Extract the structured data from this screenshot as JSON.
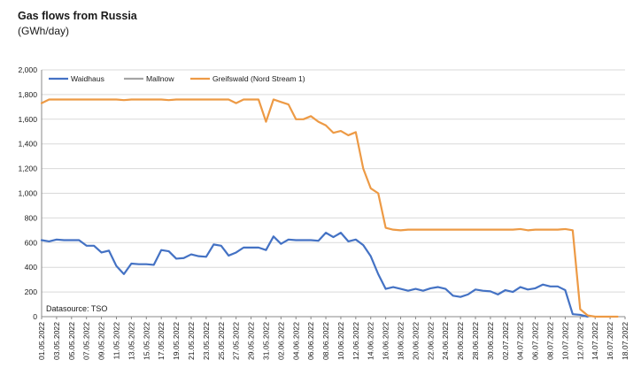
{
  "header": {
    "title": "Gas flows from Russia",
    "subtitle": "(GWh/day)"
  },
  "colors": {
    "waidhaus": "#4472c4",
    "mallnow": "#a5a5a5",
    "greifswald": "#ed9a45",
    "grid": "#d9d9d9",
    "axis": "#888888"
  },
  "chart_data": {
    "type": "line",
    "title": "Gas flows from Russia",
    "ylabel": "(GWh/day)",
    "ylim": [
      0,
      2000
    ],
    "yticks": [
      "0",
      "200",
      "400",
      "600",
      "800",
      "1,000",
      "1,200",
      "1,400",
      "1,600",
      "1,800",
      "2,000"
    ],
    "grid": "horizontal",
    "legend": "top-left",
    "annotation": "Datasource: TSO",
    "x_start": "01.05.2022",
    "x_end": "18.07.2022",
    "x_tick_labels": [
      "01.05.2022",
      "03.05.2022",
      "05.05.2022",
      "07.05.2022",
      "09.05.2022",
      "11.05.2022",
      "13.05.2022",
      "15.05.2022",
      "17.05.2022",
      "19.05.2022",
      "21.05.2022",
      "23.05.2022",
      "25.05.2022",
      "27.05.2022",
      "29.05.2022",
      "31.05.2022",
      "02.06.2022",
      "04.06.2022",
      "06.06.2022",
      "08.06.2022",
      "10.06.2022",
      "12.06.2022",
      "14.06.2022",
      "16.06.2022",
      "18.06.2022",
      "20.06.2022",
      "22.06.2022",
      "24.06.2022",
      "26.06.2022",
      "28.06.2022",
      "30.06.2022",
      "02.07.2022",
      "04.07.2022",
      "06.07.2022",
      "08.07.2022",
      "10.07.2022",
      "12.07.2022",
      "14.07.2022",
      "16.07.2022",
      "18.07.2022"
    ],
    "series": [
      {
        "name": "Waidhaus",
        "color": "#4472c4",
        "x": [
          "01.05.2022",
          "02.05.2022",
          "03.05.2022",
          "04.05.2022",
          "05.05.2022",
          "06.05.2022",
          "07.05.2022",
          "08.05.2022",
          "09.05.2022",
          "10.05.2022",
          "11.05.2022",
          "12.05.2022",
          "13.05.2022",
          "14.05.2022",
          "15.05.2022",
          "16.05.2022",
          "17.05.2022",
          "18.05.2022",
          "19.05.2022",
          "20.05.2022",
          "21.05.2022",
          "22.05.2022",
          "23.05.2022",
          "24.05.2022",
          "25.05.2022",
          "26.05.2022",
          "27.05.2022",
          "28.05.2022",
          "29.05.2022",
          "30.05.2022",
          "31.05.2022",
          "01.06.2022",
          "02.06.2022",
          "03.06.2022",
          "04.06.2022",
          "05.06.2022",
          "06.06.2022",
          "07.06.2022",
          "08.06.2022",
          "09.06.2022",
          "10.06.2022",
          "11.06.2022",
          "12.06.2022",
          "13.06.2022",
          "14.06.2022",
          "15.06.2022",
          "16.06.2022",
          "17.06.2022",
          "18.06.2022",
          "19.06.2022",
          "20.06.2022",
          "21.06.2022",
          "22.06.2022",
          "23.06.2022",
          "24.06.2022",
          "25.06.2022",
          "26.06.2022",
          "27.06.2022",
          "28.06.2022",
          "29.06.2022",
          "30.06.2022",
          "01.07.2022",
          "02.07.2022",
          "03.07.2022",
          "04.07.2022",
          "05.07.2022",
          "06.07.2022",
          "07.07.2022",
          "08.07.2022",
          "09.07.2022",
          "10.07.2022",
          "11.07.2022",
          "12.07.2022",
          "13.07.2022"
        ],
        "values": [
          620,
          610,
          625,
          620,
          620,
          620,
          575,
          575,
          520,
          535,
          410,
          345,
          430,
          425,
          425,
          420,
          540,
          530,
          470,
          475,
          505,
          490,
          485,
          585,
          575,
          495,
          520,
          560,
          560,
          560,
          540,
          650,
          590,
          625,
          620,
          620,
          620,
          615,
          680,
          645,
          680,
          610,
          625,
          580,
          490,
          345,
          225,
          240,
          225,
          210,
          225,
          210,
          230,
          240,
          225,
          170,
          160,
          180,
          220,
          210,
          205,
          180,
          215,
          200,
          240,
          220,
          230,
          260,
          245,
          245,
          215,
          20,
          15,
          0
        ]
      },
      {
        "name": "Mallnow",
        "color": "#a5a5a5",
        "x": [],
        "values": []
      },
      {
        "name": "Greifswald (Nord Stream 1)",
        "color": "#ed9a45",
        "x": [
          "01.05.2022",
          "02.05.2022",
          "03.05.2022",
          "04.05.2022",
          "05.05.2022",
          "06.05.2022",
          "07.05.2022",
          "08.05.2022",
          "09.05.2022",
          "10.05.2022",
          "11.05.2022",
          "12.05.2022",
          "13.05.2022",
          "14.05.2022",
          "15.05.2022",
          "16.05.2022",
          "17.05.2022",
          "18.05.2022",
          "19.05.2022",
          "20.05.2022",
          "21.05.2022",
          "22.05.2022",
          "23.05.2022",
          "24.05.2022",
          "25.05.2022",
          "26.05.2022",
          "27.05.2022",
          "28.05.2022",
          "29.05.2022",
          "30.05.2022",
          "31.05.2022",
          "01.06.2022",
          "02.06.2022",
          "03.06.2022",
          "04.06.2022",
          "05.06.2022",
          "06.06.2022",
          "07.06.2022",
          "08.06.2022",
          "09.06.2022",
          "10.06.2022",
          "11.06.2022",
          "12.06.2022",
          "13.06.2022",
          "14.06.2022",
          "15.06.2022",
          "16.06.2022",
          "17.06.2022",
          "18.06.2022",
          "19.06.2022",
          "20.06.2022",
          "21.06.2022",
          "22.06.2022",
          "23.06.2022",
          "24.06.2022",
          "25.06.2022",
          "26.06.2022",
          "27.06.2022",
          "28.06.2022",
          "29.06.2022",
          "30.06.2022",
          "01.07.2022",
          "02.07.2022",
          "03.07.2022",
          "04.07.2022",
          "05.07.2022",
          "06.07.2022",
          "07.07.2022",
          "08.07.2022",
          "09.07.2022",
          "10.07.2022",
          "11.07.2022",
          "12.07.2022",
          "13.07.2022",
          "14.07.2022",
          "15.07.2022",
          "16.07.2022",
          "17.07.2022"
        ],
        "values": [
          1730,
          1760,
          1760,
          1760,
          1760,
          1760,
          1760,
          1760,
          1760,
          1760,
          1760,
          1755,
          1760,
          1760,
          1760,
          1760,
          1760,
          1755,
          1760,
          1760,
          1760,
          1760,
          1760,
          1760,
          1760,
          1760,
          1730,
          1760,
          1760,
          1760,
          1580,
          1760,
          1740,
          1720,
          1600,
          1600,
          1625,
          1580,
          1550,
          1490,
          1505,
          1470,
          1495,
          1200,
          1040,
          1000,
          720,
          705,
          700,
          705,
          705,
          705,
          705,
          705,
          705,
          705,
          705,
          705,
          705,
          705,
          705,
          705,
          705,
          705,
          710,
          700,
          705,
          705,
          705,
          705,
          710,
          700,
          60,
          10,
          0,
          0,
          0,
          0
        ]
      }
    ]
  }
}
